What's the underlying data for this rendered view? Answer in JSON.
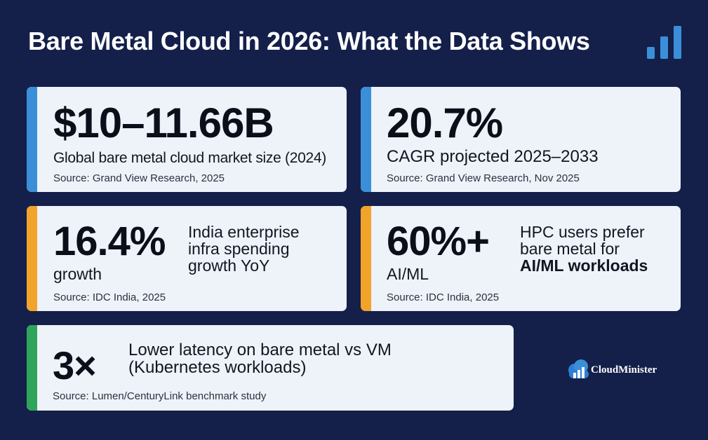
{
  "title": "Bare Metal Cloud in 2026: What the Data Shows",
  "colors": {
    "background": "#14204a",
    "card": "#eef2f9",
    "accent_blue": "#3b8fd9",
    "accent_orange": "#f2a32a",
    "accent_green": "#2ea55a"
  },
  "cards": {
    "market": {
      "value": "$10–11.66B",
      "label": "Global bare metal cloud market size (2024)",
      "source": "Source: Grand View Research, 2025"
    },
    "cagr": {
      "value": "20.7%",
      "label": "CAGR projected 2025–2033",
      "source": "Source: Grand View Research, Nov 2025"
    },
    "india": {
      "value": "16.4%",
      "sub": "growth",
      "side_1": "India enterprise",
      "side_2": "infra spending",
      "side_3": "growth YoY",
      "source": "Source: IDC India, 2025"
    },
    "hpc": {
      "value": "60%+",
      "sub": "AI/ML",
      "side_1": "HPC users prefer",
      "side_2": "bare metal for",
      "side_3": "AI/ML workloads",
      "source": "Source: IDC India, 2025"
    },
    "latency": {
      "value": "3×",
      "label_1": "Lower latency on bare metal vs VM",
      "label_2": "(Kubernetes workloads)",
      "source": "Source: Lumen/CenturyLink benchmark study"
    }
  },
  "logo": {
    "text": "CloudMinister",
    "icon": "cloud-icon"
  },
  "header_icon": "bar-chart-icon"
}
